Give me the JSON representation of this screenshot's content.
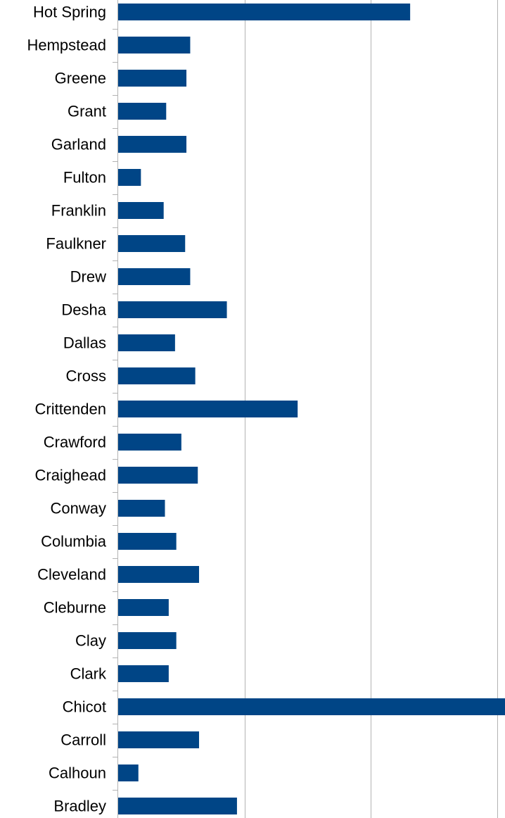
{
  "chart_data": {
    "type": "bar",
    "orientation": "horizontal",
    "categories": [
      "Hot Spring",
      "Hempstead",
      "Greene",
      "Grant",
      "Garland",
      "Fulton",
      "Franklin",
      "Faulkner",
      "Drew",
      "Desha",
      "Dallas",
      "Cross",
      "Crittenden",
      "Crawford",
      "Craighead",
      "Conway",
      "Columbia",
      "Cleveland",
      "Cleburne",
      "Clay",
      "Clark",
      "Chicot",
      "Carroll",
      "Calhoun",
      "Bradley"
    ],
    "values": [
      2.31,
      0.57,
      0.54,
      0.38,
      0.54,
      0.18,
      0.36,
      0.53,
      0.57,
      0.86,
      0.45,
      0.61,
      1.42,
      0.5,
      0.63,
      0.37,
      0.46,
      0.64,
      0.4,
      0.46,
      0.4,
      3.49,
      0.64,
      0.16,
      0.94
    ],
    "xlim": [
      0,
      3.5
    ],
    "grid": true,
    "bar_color": "#004586",
    "grid_color": "#b3b3b3",
    "axis_color": "#b3b3b3"
  }
}
